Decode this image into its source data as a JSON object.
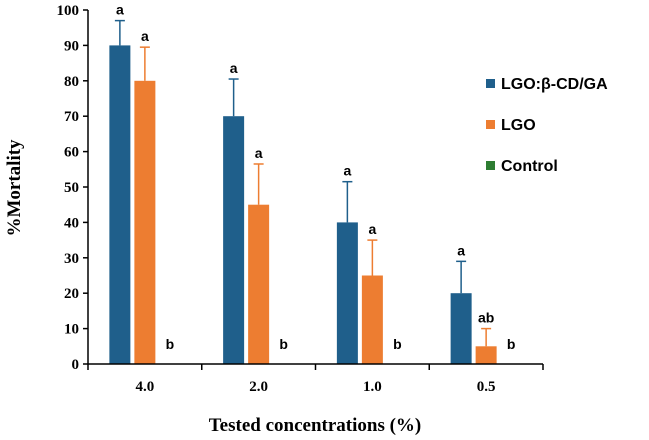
{
  "chart_data": {
    "type": "bar",
    "title": "",
    "xlabel": "Tested concentrations (%)",
    "ylabel": "%Mortality",
    "ylim": [
      0,
      100
    ],
    "yticks": [
      0,
      10,
      20,
      30,
      40,
      50,
      60,
      70,
      80,
      90,
      100
    ],
    "categories": [
      "4.0",
      "2.0",
      "1.0",
      "0.5"
    ],
    "legend_position": "right",
    "series": [
      {
        "name": "LGO:β-CD/GA",
        "color": "#1f5f8b",
        "values": [
          90,
          70,
          40,
          20
        ],
        "errors": [
          7,
          10.5,
          11.5,
          9
        ],
        "labels": [
          "a",
          "a",
          "a",
          "a"
        ]
      },
      {
        "name": "LGO",
        "color": "#ed7d31",
        "values": [
          80,
          45,
          25,
          5
        ],
        "errors": [
          9.5,
          11.5,
          10,
          5
        ],
        "labels": [
          "a",
          "a",
          "a",
          "ab"
        ]
      },
      {
        "name": "Control",
        "color": "#2e7d32",
        "values": [
          0,
          0,
          0,
          0
        ],
        "errors": [
          0,
          0,
          0,
          0
        ],
        "labels": [
          "b",
          "b",
          "b",
          "b"
        ]
      }
    ]
  }
}
